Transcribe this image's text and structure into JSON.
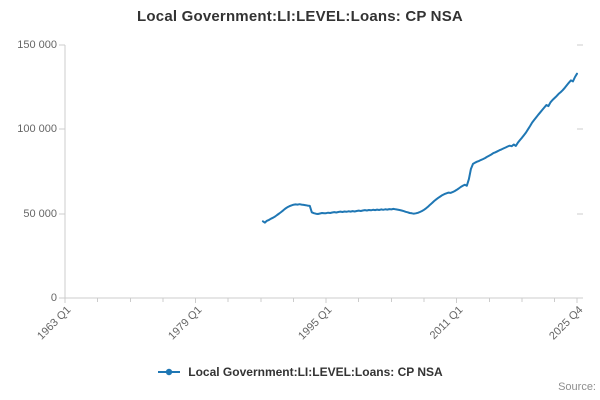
{
  "chart": {
    "title": "Local Government:LI:LEVEL:Loans: CP NSA",
    "legend_label": "Local Government:LI:LEVEL:Loans: CP NSA",
    "source": "Source:"
  },
  "chart_data": {
    "type": "line",
    "title": "Local Government:LI:LEVEL:Loans: CP NSA",
    "xlabel": "",
    "ylabel": "",
    "ylim": [
      0,
      150000
    ],
    "grid": "off",
    "legend_position": "bottom",
    "line_color": "#1f77b4",
    "axis_color": "#cccccc",
    "x_axis_range": [
      "1963 Q1",
      "2025 Q4"
    ],
    "x_tick_labels": [
      "1963 Q1",
      "1979 Q1",
      "1995 Q1",
      "2011 Q1",
      "2025 Q4"
    ],
    "y_ticks": [
      {
        "value": 0,
        "label": "0"
      },
      {
        "value": 50000,
        "label": "50 000"
      },
      {
        "value": 100000,
        "label": "100 000"
      },
      {
        "value": 150000,
        "label": "150 000"
      }
    ],
    "series": [
      {
        "name": "Local Government:LI:LEVEL:Loans: CP NSA",
        "frequency": "quarterly",
        "start": "1987 Q2",
        "end": "2025 Q4",
        "values": [
          45500,
          44700,
          45800,
          46300,
          47000,
          47600,
          48300,
          49200,
          50100,
          51000,
          52000,
          53000,
          53800,
          54400,
          54900,
          55300,
          55500,
          55400,
          55600,
          55400,
          55200,
          55000,
          54800,
          54600,
          50800,
          50300,
          50000,
          49800,
          50100,
          50400,
          50200,
          50300,
          50600,
          50400,
          50700,
          50900,
          50700,
          51000,
          51200,
          51000,
          51300,
          51100,
          51400,
          51200,
          51500,
          51300,
          51600,
          51800,
          51600,
          51900,
          52100,
          51900,
          52200,
          52000,
          52300,
          52100,
          52400,
          52200,
          52500,
          52300,
          52600,
          52400,
          52700,
          52500,
          52800,
          52600,
          52400,
          52200,
          51900,
          51500,
          51100,
          50800,
          50400,
          50200,
          50000,
          50200,
          50500,
          51000,
          51600,
          52300,
          53200,
          54200,
          55300,
          56400,
          57500,
          58500,
          59400,
          60200,
          61000,
          61600,
          62100,
          62500,
          62300,
          62800,
          63400,
          64100,
          64900,
          65800,
          66500,
          67200,
          66500,
          70500,
          76500,
          79500,
          80200,
          80800,
          81300,
          81900,
          82400,
          83000,
          83800,
          84400,
          85100,
          85900,
          86400,
          87000,
          87600,
          88100,
          88700,
          89200,
          89800,
          90300,
          90000,
          91000,
          90200,
          92000,
          93600,
          95000,
          96600,
          98100,
          100000,
          102000,
          104000,
          105600,
          107100,
          108600,
          110100,
          111500,
          113000,
          114400,
          113800,
          116000,
          117400,
          118600,
          119700,
          121000,
          122100,
          123200,
          124600,
          126100,
          127600,
          129000,
          128400,
          131000,
          133000
        ]
      }
    ]
  }
}
